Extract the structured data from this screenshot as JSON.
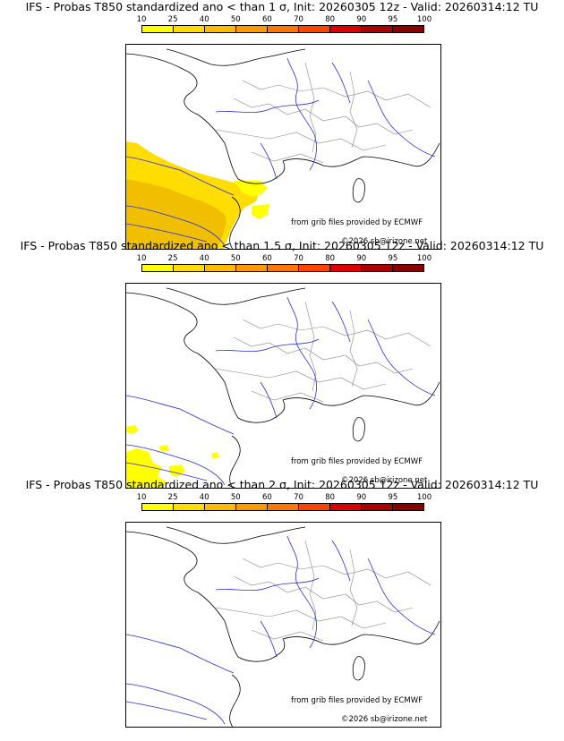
{
  "colorbar": {
    "ticks": [
      "10",
      "25",
      "40",
      "50",
      "60",
      "70",
      "80",
      "90",
      "95",
      "100"
    ],
    "colors": [
      "#ffff00",
      "#ffdd00",
      "#ffbb00",
      "#ff9900",
      "#ff7700",
      "#ff4400",
      "#dd0000",
      "#aa0000",
      "#880000"
    ]
  },
  "panels": [
    {
      "title": "IFS - Probas T850  standardized ano < than 1 σ, Init: 20260305 12z - Valid: 20260314:12 TU",
      "credit": "from grib files provided by ECMWF",
      "copyright": "©2026 sb@irizone.net"
    },
    {
      "title": "IFS - Probas T850  standardized ano < than 1.5 σ, Init: 20260305 12z - Valid: 20260314:12 TU",
      "credit": "from grib files provided by ECMWF",
      "copyright": "©2026 sb@irizone.net"
    },
    {
      "title": "IFS - Probas T850  standardized ano < than 2 σ, Init: 20260305 12z - Valid: 20260314:12 TU",
      "credit": "from grib files provided by ECMWF",
      "copyright": "©2026 sb@irizone.net"
    }
  ]
}
